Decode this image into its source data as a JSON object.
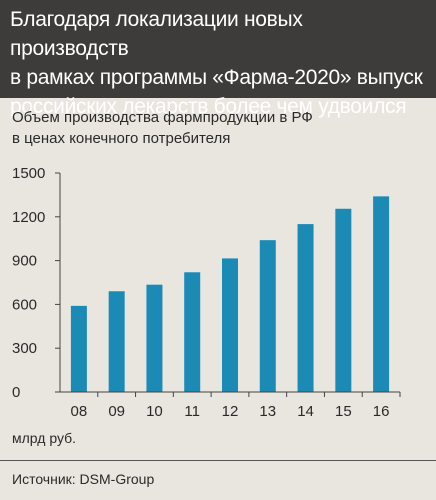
{
  "header": {
    "title_lines": [
      "Благодаря локализации новых производств",
      "в рамках программы «Фарма-2020» выпуск",
      "российских лекарств более чем удвоился"
    ]
  },
  "subtitle_lines": [
    "Объем производства фармпродукции в РФ",
    "в ценах конечного потребителя"
  ],
  "units": "млрд руб.",
  "source": "Источник: DSM-Group",
  "colors": {
    "bar": "#1b8ab5",
    "header_bg": "#3d3c3a",
    "background": "#e9e6e0"
  },
  "chart_data": {
    "type": "bar",
    "categories": [
      "08",
      "09",
      "10",
      "11",
      "12",
      "13",
      "14",
      "15",
      "16"
    ],
    "values": [
      590,
      690,
      735,
      820,
      915,
      1040,
      1150,
      1255,
      1340
    ],
    "title": "Объем производства фармпродукции в РФ в ценах конечного потребителя",
    "ylabel": "млрд руб.",
    "yticks": [
      0,
      300,
      600,
      900,
      1200,
      1500
    ],
    "ylim": [
      0,
      1500
    ],
    "grid": false
  }
}
